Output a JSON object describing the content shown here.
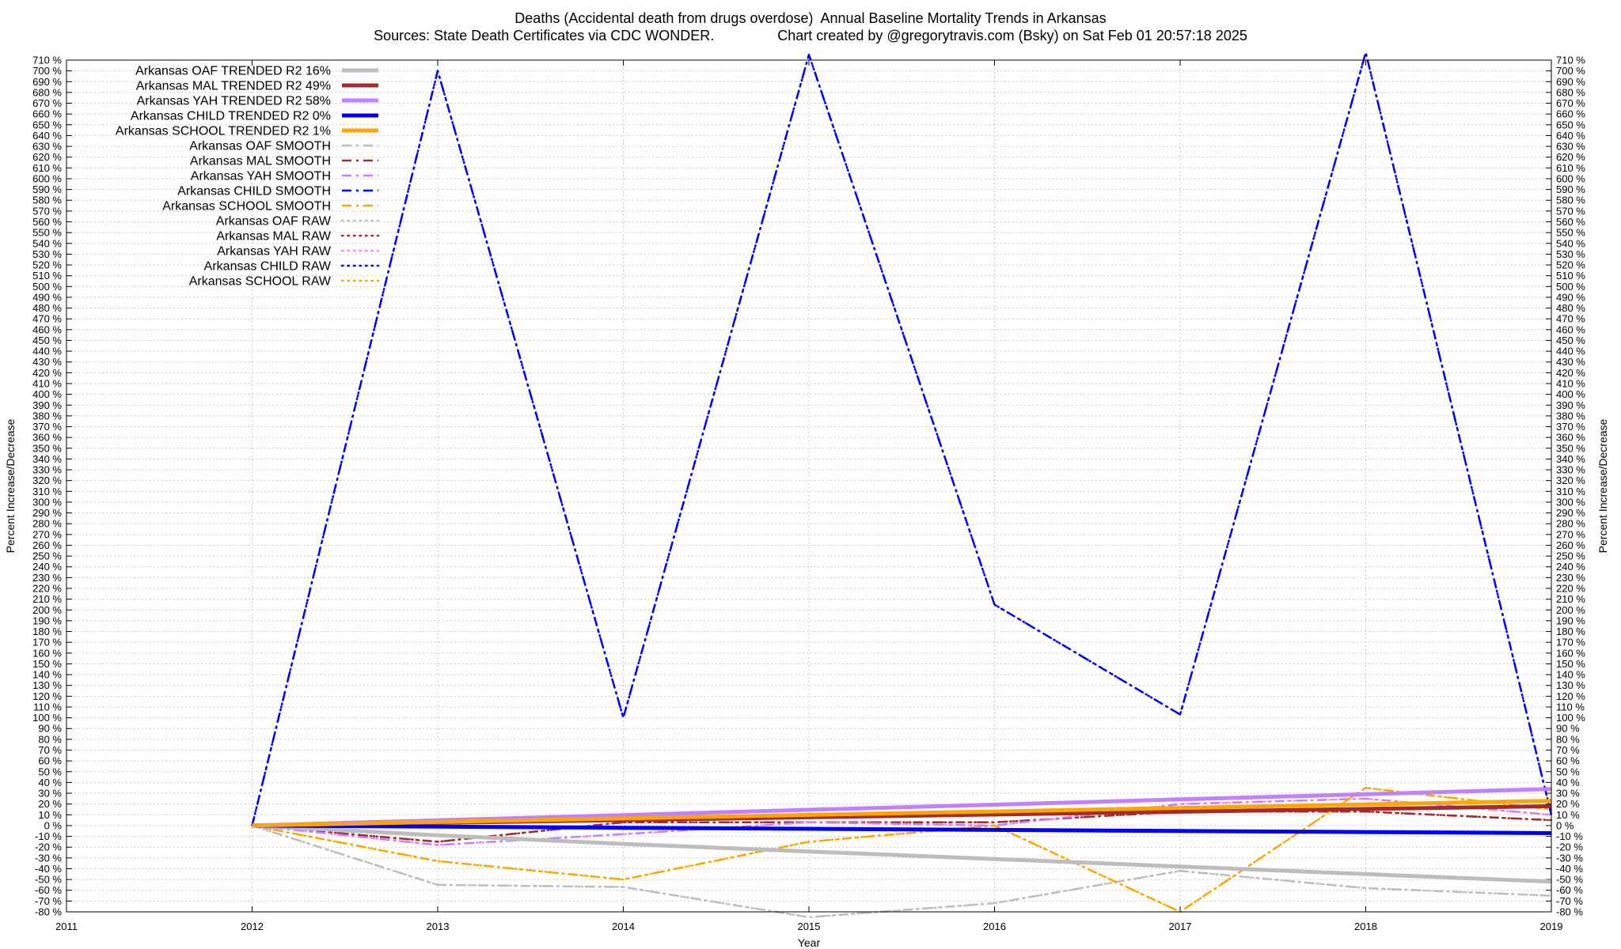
{
  "header": {
    "title": "Deaths (Accidental death from drugs overdose)  Annual Baseline Mortality Trends in Arkansas",
    "subtitle": "Sources: State Death Certificates via CDC WONDER.                Chart created by @gregorytravis.com (Bsky) on Sat Feb 01 20:57:18 2025"
  },
  "chart_data": {
    "type": "line",
    "title": "Deaths (Accidental death from drugs overdose)  Annual Baseline Mortality Trends in Arkansas",
    "subtitle": "Sources: State Death Certificates via CDC WONDER.                Chart created by @gregorytravis.com (Bsky) on Sat Feb 01 20:57:18 2025",
    "xlabel": "Year",
    "ylabel": "Percent Increase/Decrease",
    "y2label": "Percent Increase/Decrease",
    "xlim": [
      2011,
      2019
    ],
    "ylim": [
      -80,
      710
    ],
    "x_ticks": [
      "2011",
      "2012",
      "2013",
      "2014",
      "2015",
      "2016",
      "2017",
      "2018",
      "2019"
    ],
    "y_tick_step": 10,
    "y_tick_suffix": " %",
    "grid": true,
    "legend_position": "top-left",
    "x": [
      2012,
      2013,
      2014,
      2015,
      2016,
      2017,
      2018,
      2019
    ],
    "series": [
      {
        "name": "Arkansas OAF TRENDED R2  16%",
        "style": "trend",
        "color": "#bdbdbd",
        "values": [
          0,
          -9,
          -17,
          -24,
          -31,
          -38,
          -45,
          -52
        ]
      },
      {
        "name": "Arkansas MAL TRENDED R2  49%",
        "style": "trend",
        "color": "#a52a2a",
        "values": [
          0,
          2.6,
          5.1,
          7.7,
          10.3,
          12.9,
          15.4,
          18
        ]
      },
      {
        "name": "Arkansas YAH TRENDED R2  58%",
        "style": "trend",
        "color": "#c080ff",
        "values": [
          0,
          4.9,
          9.7,
          14.6,
          19.4,
          24.3,
          29.1,
          34
        ]
      },
      {
        "name": "Arkansas CHILD TRENDED R2  0%",
        "style": "trend",
        "color": "#0000ff",
        "values": [
          0,
          -1,
          -2,
          -3,
          -4,
          -5,
          -6,
          -7
        ]
      },
      {
        "name": "Arkansas SCHOOL TRENDED R2  1%",
        "style": "trend",
        "color": "#ffa500",
        "values": [
          0,
          3.3,
          6.6,
          9.9,
          13.1,
          16.4,
          19.7,
          23
        ]
      },
      {
        "name": "Arkansas OAF SMOOTH",
        "style": "smooth",
        "color": "#bdbdbd",
        "values": [
          0,
          -55,
          -57,
          -85,
          -72,
          -42,
          -58,
          -65
        ]
      },
      {
        "name": "Arkansas MAL SMOOTH",
        "style": "smooth",
        "color": "#a52a2a",
        "values": [
          0,
          -15,
          3,
          3,
          3,
          13,
          13,
          5
        ]
      },
      {
        "name": "Arkansas YAH SMOOTH",
        "style": "smooth",
        "color": "#c080ff",
        "values": [
          0,
          -18,
          -8,
          3,
          0,
          20,
          25,
          10
        ]
      },
      {
        "name": "Arkansas CHILD SMOOTH",
        "style": "smooth",
        "color": "#0000ff",
        "values": [
          0,
          700,
          100,
          715,
          205,
          103,
          717,
          10
        ]
      },
      {
        "name": "Arkansas SCHOOL SMOOTH",
        "style": "smooth",
        "color": "#ffa500",
        "values": [
          0,
          -33,
          -50,
          -15,
          0,
          -80,
          35,
          15
        ]
      },
      {
        "name": "Arkansas OAF RAW",
        "style": "raw",
        "color": "#bdbdbd",
        "values": [
          0,
          -55,
          -57,
          -85,
          -72,
          -42,
          -58,
          -65
        ]
      },
      {
        "name": "Arkansas MAL RAW",
        "style": "raw",
        "color": "#a52a2a",
        "values": [
          0,
          -15,
          3,
          3,
          3,
          13,
          13,
          5
        ]
      },
      {
        "name": "Arkansas YAH RAW",
        "style": "raw",
        "color": "#ff80ff",
        "values": [
          0,
          -18,
          -8,
          3,
          0,
          20,
          25,
          10
        ]
      },
      {
        "name": "Arkansas CHILD RAW",
        "style": "raw",
        "color": "#0000ff",
        "values": [
          0,
          700,
          100,
          715,
          205,
          103,
          717,
          10
        ]
      },
      {
        "name": "Arkansas SCHOOL RAW",
        "style": "raw",
        "color": "#ffa500",
        "values": [
          0,
          -33,
          -50,
          -15,
          0,
          -80,
          35,
          15
        ]
      }
    ]
  }
}
